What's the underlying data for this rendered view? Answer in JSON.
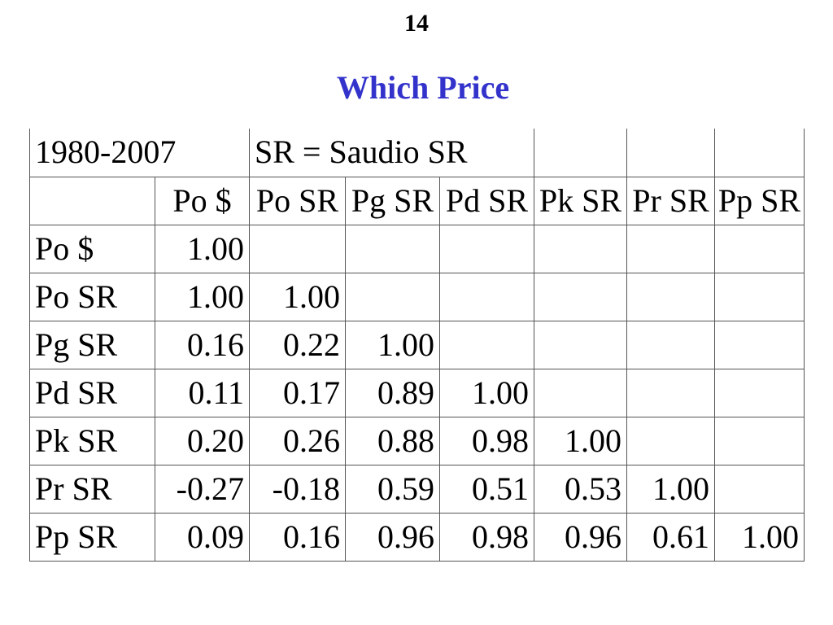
{
  "page_number": "14",
  "title": "Which Price",
  "table": {
    "top_row": [
      "1980-2007",
      "SR = Saudio SR"
    ],
    "columns": [
      "Po $",
      "Po SR",
      "Pg SR",
      "Pd SR",
      "Pk SR",
      "Pr SR",
      "Pp SR"
    ],
    "rows": [
      {
        "label": "Po $",
        "values": [
          "1.00"
        ]
      },
      {
        "label": "Po SR",
        "values": [
          "1.00",
          "1.00"
        ]
      },
      {
        "label": "Pg SR",
        "values": [
          "0.16",
          "0.22",
          "1.00"
        ]
      },
      {
        "label": "Pd SR",
        "values": [
          "0.11",
          "0.17",
          "0.89",
          "1.00"
        ]
      },
      {
        "label": "Pk SR",
        "values": [
          "0.20",
          "0.26",
          "0.88",
          "0.98",
          "1.00"
        ]
      },
      {
        "label": "Pr SR",
        "values": [
          "-0.27",
          "-0.18",
          "0.59",
          "0.51",
          "0.53",
          "1.00"
        ]
      },
      {
        "label": "Pp SR",
        "values": [
          "0.09",
          "0.16",
          "0.96",
          "0.98",
          "0.96",
          "0.61",
          "1.00"
        ]
      }
    ]
  }
}
